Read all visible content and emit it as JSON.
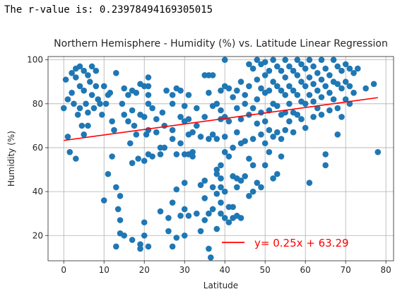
{
  "output": {
    "r_value_text": "The r-value is: 0.23978494169305015"
  },
  "chart_data": {
    "type": "scatter",
    "title": "Northern Hemisphere - Humidity (%) vs. Latitude Linear Regression",
    "xlabel": "Latitude",
    "ylabel": "Humidity (%)",
    "xlim": [
      -3.9,
      81.9
    ],
    "ylim": [
      8.5,
      101.5
    ],
    "xticks": [
      0,
      10,
      20,
      30,
      40,
      50,
      60,
      70,
      80
    ],
    "yticks": [
      20,
      40,
      60,
      80,
      100
    ],
    "grid": true,
    "colors": {
      "points": "#1f77b4",
      "line": "#ff0000"
    },
    "regression": {
      "slope": 0.25,
      "intercept": 63.29,
      "x_range": [
        0,
        78
      ],
      "label": "y= 0.25x + 63.29"
    },
    "legend_position": "lower-right",
    "points": [
      [
        0,
        78
      ],
      [
        0.5,
        91
      ],
      [
        1,
        82
      ],
      [
        1,
        65
      ],
      [
        1.5,
        58
      ],
      [
        2,
        94
      ],
      [
        2,
        85
      ],
      [
        2.5,
        80
      ],
      [
        3,
        96
      ],
      [
        3,
        92
      ],
      [
        3,
        55
      ],
      [
        3.5,
        75
      ],
      [
        4,
        97
      ],
      [
        4,
        88
      ],
      [
        4,
        78
      ],
      [
        4.5,
        70
      ],
      [
        5,
        95
      ],
      [
        5,
        86
      ],
      [
        5,
        66
      ],
      [
        5.5,
        80
      ],
      [
        6,
        93
      ],
      [
        6,
        76
      ],
      [
        6,
        70
      ],
      [
        6.5,
        90
      ],
      [
        7,
        97
      ],
      [
        7,
        84
      ],
      [
        7.5,
        78
      ],
      [
        8,
        95
      ],
      [
        8,
        88
      ],
      [
        8.5,
        82
      ],
      [
        9,
        80
      ],
      [
        9.5,
        75
      ],
      [
        10,
        36
      ],
      [
        10,
        88
      ],
      [
        10.5,
        80
      ],
      [
        11,
        84
      ],
      [
        11,
        48
      ],
      [
        11.5,
        85
      ],
      [
        12,
        72
      ],
      [
        12,
        56
      ],
      [
        12.5,
        68
      ],
      [
        13,
        94
      ],
      [
        13,
        42
      ],
      [
        13,
        15
      ],
      [
        13.5,
        32
      ],
      [
        14,
        38
      ],
      [
        14,
        27
      ],
      [
        14,
        21
      ],
      [
        14.5,
        80
      ],
      [
        15,
        87
      ],
      [
        15,
        75
      ],
      [
        15,
        20
      ],
      [
        16,
        84
      ],
      [
        16,
        72
      ],
      [
        16.5,
        62
      ],
      [
        17,
        86
      ],
      [
        17,
        77
      ],
      [
        17,
        53
      ],
      [
        17,
        18
      ],
      [
        17.5,
        70
      ],
      [
        18,
        85
      ],
      [
        18,
        66
      ],
      [
        18.5,
        55
      ],
      [
        19,
        89
      ],
      [
        19,
        75
      ],
      [
        19,
        16
      ],
      [
        19,
        14
      ],
      [
        20,
        88
      ],
      [
        20,
        74
      ],
      [
        20,
        54
      ],
      [
        20,
        26
      ],
      [
        20,
        20
      ],
      [
        20.5,
        66
      ],
      [
        21,
        92
      ],
      [
        21,
        88
      ],
      [
        21,
        84
      ],
      [
        21,
        80
      ],
      [
        21,
        68
      ],
      [
        21,
        57
      ],
      [
        21,
        15
      ],
      [
        22,
        78
      ],
      [
        22,
        56
      ],
      [
        23,
        73
      ],
      [
        23,
        67
      ],
      [
        24,
        60
      ],
      [
        24,
        57
      ],
      [
        24,
        31
      ],
      [
        24.5,
        76
      ],
      [
        25,
        70
      ],
      [
        25,
        60
      ],
      [
        25.5,
        86
      ],
      [
        26,
        28
      ],
      [
        26,
        22
      ],
      [
        27,
        84
      ],
      [
        27,
        80
      ],
      [
        27,
        68
      ],
      [
        27,
        64
      ],
      [
        27,
        35
      ],
      [
        27,
        15
      ],
      [
        28,
        87
      ],
      [
        28,
        57
      ],
      [
        28,
        41
      ],
      [
        28,
        19
      ],
      [
        29,
        86
      ],
      [
        29,
        74
      ],
      [
        29,
        62
      ],
      [
        29,
        29
      ],
      [
        30,
        79
      ],
      [
        30,
        72
      ],
      [
        30,
        57
      ],
      [
        30,
        44
      ],
      [
        30,
        32
      ],
      [
        30,
        20
      ],
      [
        31,
        84
      ],
      [
        31,
        73
      ],
      [
        31,
        66
      ],
      [
        31,
        57
      ],
      [
        31,
        29
      ],
      [
        32,
        67
      ],
      [
        32,
        58
      ],
      [
        32,
        56
      ],
      [
        33,
        78
      ],
      [
        33,
        70
      ],
      [
        33,
        30
      ],
      [
        34,
        65
      ],
      [
        34,
        43
      ],
      [
        34,
        22
      ],
      [
        35,
        93
      ],
      [
        35,
        74
      ],
      [
        35,
        45
      ],
      [
        35,
        37
      ],
      [
        35,
        27
      ],
      [
        36,
        93
      ],
      [
        36,
        85
      ],
      [
        36,
        64
      ],
      [
        36,
        30
      ],
      [
        36,
        14
      ],
      [
        36.5,
        10
      ],
      [
        37,
        93
      ],
      [
        37,
        79
      ],
      [
        37,
        66
      ],
      [
        37,
        42
      ],
      [
        37,
        32
      ],
      [
        38,
        80
      ],
      [
        38,
        64
      ],
      [
        38,
        50
      ],
      [
        38,
        48
      ],
      [
        38,
        39
      ],
      [
        38,
        23
      ],
      [
        39,
        86
      ],
      [
        39,
        77
      ],
      [
        39,
        73
      ],
      [
        39,
        52
      ],
      [
        39,
        46
      ],
      [
        39,
        42
      ],
      [
        39,
        35
      ],
      [
        39,
        30
      ],
      [
        40,
        100
      ],
      [
        40,
        88
      ],
      [
        40,
        74
      ],
      [
        40,
        65
      ],
      [
        40,
        58
      ],
      [
        40,
        40
      ],
      [
        40,
        28
      ],
      [
        41,
        87
      ],
      [
        41,
        72
      ],
      [
        41,
        56
      ],
      [
        41,
        33
      ],
      [
        41,
        26
      ],
      [
        42,
        83
      ],
      [
        42,
        60
      ],
      [
        42,
        47
      ],
      [
        42,
        33
      ],
      [
        42,
        28
      ],
      [
        43,
        86
      ],
      [
        43,
        78
      ],
      [
        43,
        67
      ],
      [
        43,
        46
      ],
      [
        43,
        42
      ],
      [
        43,
        29
      ],
      [
        44,
        90
      ],
      [
        44,
        73
      ],
      [
        44,
        62
      ],
      [
        44,
        45
      ],
      [
        44,
        28
      ],
      [
        45,
        84
      ],
      [
        45,
        80
      ],
      [
        45,
        63
      ],
      [
        45,
        47
      ],
      [
        46,
        98
      ],
      [
        46,
        88
      ],
      [
        46,
        75
      ],
      [
        46,
        55
      ],
      [
        46,
        38
      ],
      [
        47,
        96
      ],
      [
        47,
        78
      ],
      [
        47,
        64
      ],
      [
        47,
        52
      ],
      [
        47,
        40
      ],
      [
        48,
        100
      ],
      [
        48,
        91
      ],
      [
        48,
        82
      ],
      [
        48,
        71
      ],
      [
        48,
        44
      ],
      [
        49,
        98
      ],
      [
        49,
        87
      ],
      [
        49,
        76
      ],
      [
        49,
        66
      ],
      [
        49,
        42
      ],
      [
        50,
        99
      ],
      [
        50,
        93
      ],
      [
        50,
        85
      ],
      [
        50,
        72
      ],
      [
        50,
        62
      ],
      [
        50,
        52
      ],
      [
        51,
        95
      ],
      [
        51,
        86
      ],
      [
        51,
        77
      ],
      [
        51,
        68
      ],
      [
        51,
        58
      ],
      [
        52,
        100
      ],
      [
        52,
        90
      ],
      [
        52,
        80
      ],
      [
        52,
        65
      ],
      [
        52,
        46
      ],
      [
        53,
        97
      ],
      [
        53,
        88
      ],
      [
        53,
        79
      ],
      [
        53,
        67
      ],
      [
        53,
        48
      ],
      [
        54,
        95
      ],
      [
        54,
        86
      ],
      [
        54,
        75
      ],
      [
        54,
        64
      ],
      [
        54,
        56
      ],
      [
        55,
        100
      ],
      [
        55,
        92
      ],
      [
        55,
        84
      ],
      [
        55,
        76
      ],
      [
        55,
        68
      ],
      [
        56,
        97
      ],
      [
        56,
        88
      ],
      [
        56,
        80
      ],
      [
        56,
        72
      ],
      [
        57,
        95
      ],
      [
        57,
        86
      ],
      [
        57,
        76
      ],
      [
        57,
        67
      ],
      [
        58,
        100
      ],
      [
        58,
        93
      ],
      [
        58,
        84
      ],
      [
        58,
        75
      ],
      [
        59,
        98
      ],
      [
        59,
        90
      ],
      [
        59,
        81
      ],
      [
        59,
        73
      ],
      [
        60,
        96
      ],
      [
        60,
        88
      ],
      [
        60,
        80
      ],
      [
        60,
        69
      ],
      [
        61,
        100
      ],
      [
        61,
        92
      ],
      [
        61,
        84
      ],
      [
        61,
        44
      ],
      [
        62,
        97
      ],
      [
        62,
        89
      ],
      [
        62,
        81
      ],
      [
        62,
        74
      ],
      [
        63,
        94
      ],
      [
        63,
        86
      ],
      [
        63,
        78
      ],
      [
        64,
        100
      ],
      [
        64,
        91
      ],
      [
        64,
        83
      ],
      [
        64,
        75
      ],
      [
        65,
        96
      ],
      [
        65,
        88
      ],
      [
        65,
        57
      ],
      [
        65,
        52
      ],
      [
        66,
        93
      ],
      [
        66,
        85
      ],
      [
        66,
        77
      ],
      [
        67,
        100
      ],
      [
        67,
        90
      ],
      [
        67,
        82
      ],
      [
        68,
        97
      ],
      [
        68,
        89
      ],
      [
        68,
        78
      ],
      [
        68,
        66
      ],
      [
        69,
        95
      ],
      [
        69,
        87
      ],
      [
        69,
        74
      ],
      [
        70,
        98
      ],
      [
        70,
        90
      ],
      [
        70,
        82
      ],
      [
        71,
        96
      ],
      [
        71,
        88
      ],
      [
        71,
        80
      ],
      [
        72,
        94
      ],
      [
        72,
        85
      ],
      [
        73,
        96
      ],
      [
        75,
        87
      ],
      [
        77,
        89
      ],
      [
        78,
        58
      ]
    ]
  }
}
